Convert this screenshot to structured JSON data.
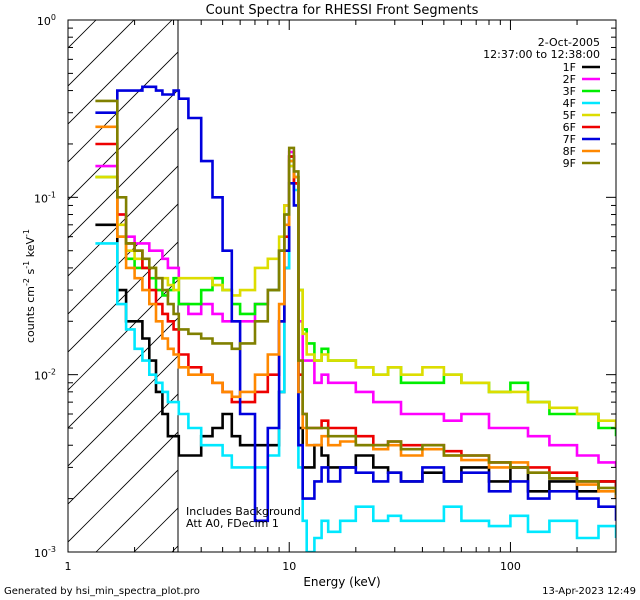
{
  "chart_data": {
    "type": "line",
    "title": "Count Spectra for RHESSI Front Segments",
    "xlabel": "Energy (keV)",
    "ylabel_main": "counts cm",
    "ylabel_sup1": "-2",
    "ylabel_mid": " s",
    "ylabel_sup2": "-1",
    "ylabel_mid2": " keV",
    "ylabel_sup3": "-1",
    "xscale": "log",
    "yscale": "log",
    "xlim": [
      1,
      300
    ],
    "ylim": [
      0.001,
      1
    ],
    "xticks": [
      {
        "value": 1,
        "label": "1"
      },
      {
        "value": 10,
        "label": "10"
      },
      {
        "value": 100,
        "label": "100"
      }
    ],
    "yticks": [
      {
        "value": 1,
        "base": "10",
        "exp": "0"
      },
      {
        "value": 0.1,
        "base": "10",
        "exp": "-1"
      },
      {
        "value": 0.01,
        "base": "10",
        "exp": "-2"
      },
      {
        "value": 0.001,
        "base": "10",
        "exp": "-3"
      }
    ],
    "date": "2-Oct-2005",
    "time_range": "12:37:00 to 12:38:00",
    "hatched_region_max_energy": 3,
    "annotations": [
      "Includes Background",
      "Att A0, FDecim 1"
    ],
    "footer_left": "Generated by hsi_min_spectra_plot.pro",
    "footer_right": "13-Apr-2023 12:49",
    "series": [
      {
        "name": "1F",
        "color": "#000000",
        "x": [
          1.33,
          1.5,
          1.67,
          1.83,
          2.0,
          2.17,
          2.33,
          2.5,
          2.67,
          2.83,
          3.0,
          3.17,
          3.5,
          4.0,
          4.5,
          5.0,
          5.5,
          6.0,
          7.0,
          8.0,
          9.0,
          9.5,
          10.0,
          10.5,
          11.0,
          11.5,
          12,
          13,
          14,
          15,
          17,
          20,
          24,
          28,
          32,
          40,
          50,
          60,
          80,
          100,
          120,
          150,
          200,
          250,
          300
        ],
        "y": [
          0.07,
          0.07,
          0.03,
          0.02,
          0.02,
          0.016,
          0.012,
          0.008,
          0.006,
          0.0045,
          0.0045,
          0.0035,
          0.0035,
          0.0045,
          0.005,
          0.006,
          0.0045,
          0.004,
          0.004,
          0.004,
          0.008,
          0.04,
          0.17,
          0.12,
          0.005,
          0.003,
          0.003,
          0.004,
          0.0035,
          0.003,
          0.003,
          0.0035,
          0.003,
          0.0028,
          0.0025,
          0.0028,
          0.0025,
          0.003,
          0.0025,
          0.003,
          0.0022,
          0.0025,
          0.0022,
          0.0025,
          0.002
        ]
      },
      {
        "name": "2F",
        "color": "#ff00ff",
        "x": [
          1.33,
          1.5,
          1.67,
          1.83,
          2.0,
          2.17,
          2.33,
          2.5,
          2.67,
          2.83,
          3.0,
          3.17,
          3.5,
          4.0,
          4.5,
          5.0,
          5.5,
          6.0,
          7.0,
          8.0,
          9.0,
          9.5,
          10.0,
          10.5,
          11.0,
          11.5,
          12,
          13,
          14,
          15,
          17,
          20,
          24,
          28,
          32,
          40,
          50,
          60,
          80,
          100,
          120,
          150,
          200,
          250,
          300
        ],
        "y": [
          0.15,
          0.15,
          0.08,
          0.06,
          0.055,
          0.055,
          0.05,
          0.05,
          0.045,
          0.04,
          0.04,
          0.025,
          0.022,
          0.025,
          0.022,
          0.02,
          0.02,
          0.02,
          0.025,
          0.03,
          0.05,
          0.09,
          0.18,
          0.12,
          0.02,
          0.012,
          0.012,
          0.009,
          0.01,
          0.009,
          0.009,
          0.008,
          0.007,
          0.007,
          0.006,
          0.006,
          0.0055,
          0.006,
          0.005,
          0.005,
          0.0045,
          0.004,
          0.0035,
          0.0032,
          0.003
        ]
      },
      {
        "name": "3F",
        "color": "#00ee00",
        "x": [
          1.33,
          1.5,
          1.67,
          1.83,
          2.0,
          2.17,
          2.33,
          2.5,
          2.67,
          2.83,
          3.0,
          3.17,
          3.5,
          4.0,
          4.5,
          5.0,
          5.5,
          6.0,
          7.0,
          8.0,
          9.0,
          9.5,
          10.0,
          10.5,
          11.0,
          11.5,
          12,
          13,
          14,
          15,
          17,
          20,
          24,
          28,
          32,
          40,
          50,
          60,
          80,
          100,
          120,
          150,
          200,
          250,
          300
        ],
        "y": [
          0.13,
          0.13,
          0.06,
          0.045,
          0.04,
          0.04,
          0.035,
          0.03,
          0.028,
          0.03,
          0.035,
          0.025,
          0.025,
          0.03,
          0.035,
          0.03,
          0.025,
          0.022,
          0.025,
          0.03,
          0.05,
          0.08,
          0.16,
          0.13,
          0.03,
          0.018,
          0.015,
          0.012,
          0.014,
          0.012,
          0.012,
          0.011,
          0.01,
          0.011,
          0.009,
          0.009,
          0.01,
          0.009,
          0.008,
          0.009,
          0.007,
          0.006,
          0.006,
          0.005,
          0.0045
        ]
      },
      {
        "name": "4F",
        "color": "#00e8ff",
        "x": [
          1.33,
          1.5,
          1.67,
          1.83,
          2.0,
          2.17,
          2.33,
          2.5,
          2.67,
          2.83,
          3.0,
          3.17,
          3.5,
          4.0,
          4.5,
          5.0,
          5.5,
          6.0,
          7.0,
          8.0,
          9.0,
          9.5,
          10.0,
          10.5,
          11.0,
          11.5,
          12,
          13,
          14,
          15,
          17,
          20,
          24,
          28,
          32,
          40,
          50,
          60,
          80,
          100,
          120,
          150,
          200,
          250,
          300
        ],
        "y": [
          0.055,
          0.055,
          0.025,
          0.018,
          0.014,
          0.012,
          0.01,
          0.009,
          0.008,
          0.007,
          0.007,
          0.006,
          0.005,
          0.004,
          0.004,
          0.0035,
          0.003,
          0.003,
          0.003,
          0.0035,
          0.008,
          0.04,
          0.15,
          0.11,
          0.003,
          0.0015,
          0.001,
          0.0012,
          0.0015,
          0.0013,
          0.0015,
          0.0018,
          0.0015,
          0.0016,
          0.0015,
          0.0015,
          0.0018,
          0.0015,
          0.0014,
          0.0016,
          0.0013,
          0.0015,
          0.0012,
          0.0014,
          0.0012
        ]
      },
      {
        "name": "5F",
        "color": "#dddd00",
        "x": [
          1.33,
          1.5,
          1.67,
          1.83,
          2.0,
          2.17,
          2.33,
          2.5,
          2.67,
          2.83,
          3.0,
          3.17,
          3.5,
          4.0,
          4.5,
          5.0,
          5.5,
          6.0,
          7.0,
          8.0,
          9.0,
          9.5,
          10.0,
          10.5,
          11.0,
          11.5,
          12,
          13,
          14,
          15,
          17,
          20,
          24,
          28,
          32,
          40,
          50,
          60,
          80,
          100,
          120,
          150,
          200,
          250,
          300
        ],
        "y": [
          0.13,
          0.13,
          0.07,
          0.05,
          0.045,
          0.04,
          0.04,
          0.035,
          0.035,
          0.032,
          0.03,
          0.035,
          0.035,
          0.035,
          0.032,
          0.03,
          0.028,
          0.03,
          0.04,
          0.045,
          0.06,
          0.09,
          0.15,
          0.12,
          0.03,
          0.017,
          0.013,
          0.012,
          0.013,
          0.012,
          0.012,
          0.011,
          0.01,
          0.011,
          0.01,
          0.011,
          0.01,
          0.009,
          0.008,
          0.008,
          0.007,
          0.0065,
          0.006,
          0.0055,
          0.005
        ]
      },
      {
        "name": "6F",
        "color": "#ee0000",
        "x": [
          1.33,
          1.5,
          1.67,
          1.83,
          2.0,
          2.17,
          2.33,
          2.5,
          2.67,
          2.83,
          3.0,
          3.17,
          3.5,
          4.0,
          4.5,
          5.0,
          5.5,
          6.0,
          7.0,
          8.0,
          9.0,
          9.5,
          10.0,
          10.5,
          11.0,
          11.5,
          12,
          13,
          14,
          15,
          17,
          20,
          24,
          28,
          32,
          40,
          50,
          60,
          80,
          100,
          120,
          150,
          200,
          250,
          300
        ],
        "y": [
          0.2,
          0.2,
          0.08,
          0.055,
          0.05,
          0.04,
          0.03,
          0.025,
          0.022,
          0.02,
          0.018,
          0.013,
          0.011,
          0.01,
          0.009,
          0.008,
          0.007,
          0.007,
          0.008,
          0.01,
          0.02,
          0.06,
          0.17,
          0.12,
          0.01,
          0.006,
          0.005,
          0.005,
          0.0055,
          0.005,
          0.005,
          0.0045,
          0.004,
          0.0042,
          0.004,
          0.004,
          0.0037,
          0.0035,
          0.0032,
          0.003,
          0.003,
          0.0028,
          0.0025,
          0.0025,
          0.0022
        ]
      },
      {
        "name": "7F",
        "color": "#0000dd",
        "x": [
          1.33,
          1.5,
          1.67,
          1.83,
          2.0,
          2.17,
          2.33,
          2.5,
          2.67,
          2.83,
          3.0,
          3.17,
          3.5,
          4.0,
          4.5,
          5.0,
          5.5,
          6.0,
          7.0,
          8.0,
          9.0,
          9.5,
          10.0,
          10.5,
          11.0,
          11.5,
          12,
          13,
          14,
          15,
          17,
          20,
          24,
          28,
          32,
          40,
          50,
          60,
          80,
          100,
          120,
          150,
          200,
          250,
          300
        ],
        "y": [
          0.3,
          0.3,
          0.4,
          0.4,
          0.4,
          0.42,
          0.42,
          0.4,
          0.38,
          0.38,
          0.4,
          0.36,
          0.28,
          0.16,
          0.1,
          0.05,
          0.02,
          0.006,
          0.0015,
          0.005,
          0.02,
          0.05,
          0.12,
          0.09,
          0.004,
          0.002,
          0.002,
          0.0025,
          0.003,
          0.0025,
          0.003,
          0.0028,
          0.0025,
          0.0028,
          0.0025,
          0.003,
          0.0025,
          0.0028,
          0.0022,
          0.0025,
          0.002,
          0.0022,
          0.002,
          0.0018,
          0.0015
        ]
      },
      {
        "name": "8F",
        "color": "#ff8800",
        "x": [
          1.33,
          1.5,
          1.67,
          1.83,
          2.0,
          2.17,
          2.33,
          2.5,
          2.67,
          2.83,
          3.0,
          3.17,
          3.5,
          4.0,
          4.5,
          5.0,
          5.5,
          6.0,
          7.0,
          8.0,
          9.0,
          9.5,
          10.0,
          10.5,
          11.0,
          11.5,
          12,
          13,
          14,
          15,
          17,
          20,
          24,
          28,
          32,
          40,
          50,
          60,
          80,
          100,
          120,
          150,
          200,
          250,
          300
        ],
        "y": [
          0.25,
          0.25,
          0.06,
          0.04,
          0.035,
          0.03,
          0.025,
          0.02,
          0.016,
          0.014,
          0.013,
          0.011,
          0.01,
          0.01,
          0.009,
          0.008,
          0.0075,
          0.008,
          0.01,
          0.013,
          0.025,
          0.07,
          0.16,
          0.13,
          0.008,
          0.005,
          0.004,
          0.004,
          0.0045,
          0.004,
          0.0042,
          0.004,
          0.0038,
          0.004,
          0.0035,
          0.0038,
          0.0035,
          0.0033,
          0.003,
          0.0032,
          0.0028,
          0.0026,
          0.0024,
          0.0022,
          0.002
        ]
      },
      {
        "name": "9F",
        "color": "#808000",
        "x": [
          1.33,
          1.5,
          1.67,
          1.83,
          2.0,
          2.17,
          2.33,
          2.5,
          2.67,
          2.83,
          3.0,
          3.17,
          3.5,
          4.0,
          4.5,
          5.0,
          5.5,
          6.0,
          7.0,
          8.0,
          9.0,
          9.5,
          10.0,
          10.5,
          11.0,
          11.5,
          12,
          13,
          14,
          15,
          17,
          20,
          24,
          28,
          32,
          40,
          50,
          60,
          80,
          100,
          120,
          150,
          200,
          250,
          300
        ],
        "y": [
          0.35,
          0.35,
          0.1,
          0.055,
          0.05,
          0.045,
          0.04,
          0.035,
          0.03,
          0.025,
          0.022,
          0.018,
          0.017,
          0.016,
          0.015,
          0.015,
          0.014,
          0.015,
          0.02,
          0.03,
          0.05,
          0.08,
          0.19,
          0.14,
          0.012,
          0.006,
          0.005,
          0.005,
          0.005,
          0.0045,
          0.0045,
          0.004,
          0.004,
          0.0042,
          0.0038,
          0.004,
          0.0035,
          0.0035,
          0.0032,
          0.003,
          0.0028,
          0.0026,
          0.0025,
          0.0023,
          0.0021
        ]
      }
    ]
  }
}
